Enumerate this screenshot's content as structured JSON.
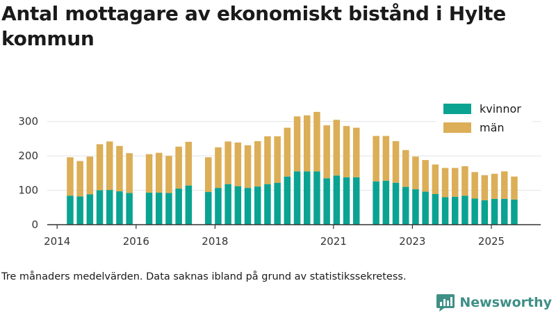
{
  "title": "Antal mottagare av ekonomiskt bistånd i Hylte kommun",
  "footnote": "Tre månaders medelvärden. Data saknas ibland på grund av statistikssekretess.",
  "brand": {
    "name": "Newsworthy",
    "icon": "newsworthy-logo-icon",
    "color": "#3e8f86"
  },
  "colors": {
    "kvinnor": "#0aa392",
    "man": "#dbae57",
    "grid": "#e2e2e2",
    "axis": "#333333"
  },
  "chart_data": {
    "type": "bar",
    "stacked": true,
    "title": "Antal mottagare av ekonomiskt bistånd i Hylte kommun",
    "xlabel": "",
    "ylabel": "",
    "ylim": [
      0,
      350
    ],
    "yticks": [
      0,
      100,
      200,
      300
    ],
    "xlim": [
      2013.75,
      2026.25
    ],
    "xticks": [
      2014,
      2016,
      2018,
      2021,
      2023,
      2025
    ],
    "grid": true,
    "legend_position": "top-right",
    "series": [
      {
        "name": "kvinnor",
        "color": "#0aa392",
        "x": [
          2014.33,
          2014.58,
          2014.83,
          2015.08,
          2015.33,
          2015.58,
          2015.83,
          2016.33,
          2016.58,
          2016.83,
          2017.08,
          2017.33,
          2017.83,
          2018.08,
          2018.33,
          2018.58,
          2018.83,
          2019.08,
          2019.33,
          2019.58,
          2019.83,
          2020.08,
          2020.33,
          2020.58,
          2020.83,
          2021.08,
          2021.33,
          2021.58,
          2022.08,
          2022.33,
          2022.58,
          2022.83,
          2023.08,
          2023.33,
          2023.58,
          2023.83,
          2024.08,
          2024.33,
          2024.58,
          2024.83,
          2025.08,
          2025.33,
          2025.58
        ],
        "values": [
          84,
          82,
          88,
          100,
          101,
          97,
          92,
          93,
          93,
          92,
          105,
          114,
          95,
          107,
          118,
          112,
          107,
          111,
          118,
          122,
          140,
          155,
          155,
          155,
          135,
          143,
          138,
          138,
          126,
          128,
          122,
          110,
          103,
          96,
          89,
          80,
          81,
          84,
          76,
          71,
          75,
          75,
          73
        ]
      },
      {
        "name": "män",
        "color": "#dbae57",
        "x": [
          2014.33,
          2014.58,
          2014.83,
          2015.08,
          2015.33,
          2015.58,
          2015.83,
          2016.33,
          2016.58,
          2016.83,
          2017.08,
          2017.33,
          2017.83,
          2018.08,
          2018.33,
          2018.58,
          2018.83,
          2019.08,
          2019.33,
          2019.58,
          2019.83,
          2020.08,
          2020.33,
          2020.58,
          2020.83,
          2021.08,
          2021.33,
          2021.58,
          2022.08,
          2022.33,
          2022.58,
          2022.83,
          2023.08,
          2023.33,
          2023.58,
          2023.83,
          2024.08,
          2024.33,
          2024.58,
          2024.83,
          2025.08,
          2025.33,
          2025.58
        ],
        "values": [
          112,
          103,
          110,
          134,
          141,
          132,
          116,
          112,
          116,
          108,
          122,
          127,
          101,
          118,
          124,
          127,
          124,
          132,
          139,
          135,
          142,
          160,
          163,
          173,
          154,
          162,
          149,
          144,
          132,
          130,
          121,
          107,
          95,
          92,
          86,
          85,
          84,
          86,
          77,
          73,
          73,
          80,
          67
        ]
      }
    ]
  }
}
